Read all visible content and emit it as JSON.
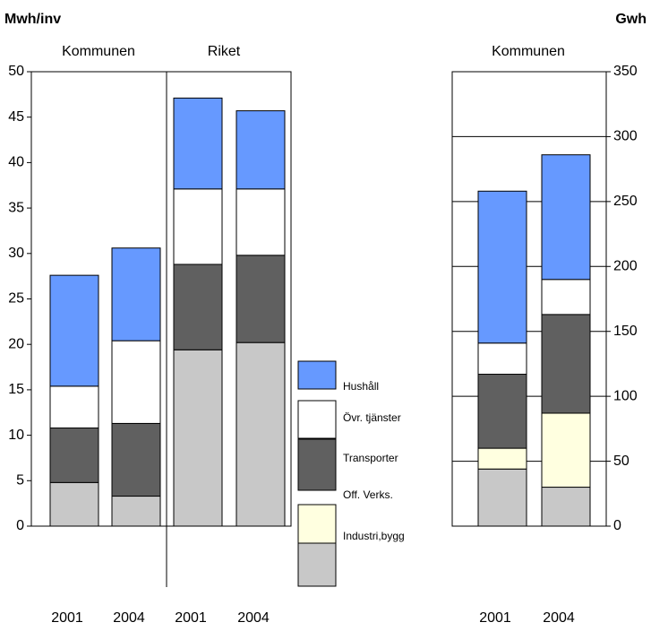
{
  "chart_data": [
    {
      "type": "bar",
      "stacked": true,
      "y_label": "Mwh/inv",
      "groups": [
        "Kommunen",
        "Riket"
      ],
      "categories": [
        "2001",
        "2004",
        "2001",
        "2004"
      ],
      "ylim": [
        0,
        50
      ],
      "yticks": [
        0,
        5,
        10,
        15,
        20,
        25,
        30,
        35,
        40,
        45,
        50
      ],
      "grid": false,
      "series": [
        {
          "name": "Industri,bygg",
          "color": "#c8c8c8",
          "values": [
            4.8,
            3.3,
            19.4,
            20.2
          ]
        },
        {
          "name": "Off. Verks.",
          "color": "#ffffe0",
          "values": [
            0,
            0,
            0,
            0
          ]
        },
        {
          "name": "Transporter",
          "color": "#606060",
          "values": [
            6.0,
            8.0,
            9.4,
            9.6
          ]
        },
        {
          "name": "Övr. tjänster",
          "color": "#ffffff",
          "values": [
            4.6,
            9.1,
            8.3,
            7.3
          ]
        },
        {
          "name": "Hushåll",
          "color": "#6699ff",
          "values": [
            12.2,
            10.2,
            10.0,
            8.6
          ]
        }
      ]
    },
    {
      "type": "bar",
      "stacked": true,
      "y_label": "Gwh",
      "groups": [
        "Kommunen"
      ],
      "categories": [
        "2001",
        "2004"
      ],
      "ylim": [
        0,
        350
      ],
      "yticks": [
        0,
        50,
        100,
        150,
        200,
        250,
        300,
        350
      ],
      "grid": true,
      "series": [
        {
          "name": "Industri,bygg",
          "color": "#c8c8c8",
          "values": [
            44,
            30
          ]
        },
        {
          "name": "Off. Verks.",
          "color": "#ffffe0",
          "values": [
            16,
            57
          ]
        },
        {
          "name": "Transporter",
          "color": "#606060",
          "values": [
            57,
            76
          ]
        },
        {
          "name": "Övr. tjänster",
          "color": "#ffffff",
          "values": [
            24,
            27
          ]
        },
        {
          "name": "Hushåll",
          "color": "#6699ff",
          "values": [
            117,
            96
          ]
        }
      ]
    }
  ]
}
